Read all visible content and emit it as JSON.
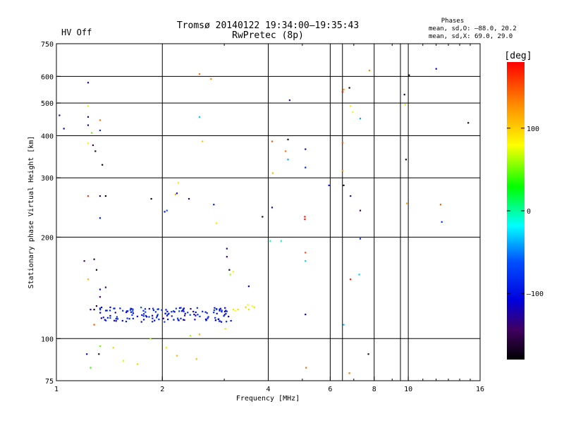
{
  "header": {
    "status": "HV Off",
    "title_line1": "Tromsø 20140122 19:34:00–19:35:43",
    "title_line2": "RwPretec (8p)",
    "phases_title": "Phases",
    "phases_o": "mean, sd,O: –88.0, 20.2",
    "phases_x": "mean, sd,X: 69.0, 29.0"
  },
  "colors": {
    "status": "#cc0000",
    "grid": "#000000"
  },
  "chart_data": {
    "type": "scatter",
    "title": "Tromsø 20140122 19:34:00–19:35:43",
    "subtitle": "RwPretec (8p)",
    "xlabel": "Frequency [MHz]",
    "ylabel": "Stationary phase Virtual Height [km]",
    "xscale": "log2",
    "yscale": "log",
    "xlim": [
      1,
      16
    ],
    "ylim": [
      75,
      750
    ],
    "xticks": [
      {
        "v": 1,
        "label": "1"
      },
      {
        "v": 2,
        "label": "2"
      },
      {
        "v": 4,
        "label": "4"
      },
      {
        "v": 6,
        "label": "6"
      },
      {
        "v": 8,
        "label": "8"
      },
      {
        "v": 10,
        "label": "10"
      },
      {
        "v": 16,
        "label": "16"
      }
    ],
    "x_minor_grid": [
      6.5,
      9.5
    ],
    "yticks": [
      {
        "v": 75,
        "label": "75"
      },
      {
        "v": 100,
        "label": "100"
      },
      {
        "v": 200,
        "label": "200"
      },
      {
        "v": 300,
        "label": "300"
      },
      {
        "v": 400,
        "label": "400"
      },
      {
        "v": 500,
        "label": "500"
      },
      {
        "v": 600,
        "label": "600"
      },
      {
        "v": 750,
        "label": "750"
      }
    ],
    "grid": true,
    "colorbar": {
      "label": "[deg]",
      "range": [
        -180,
        180
      ],
      "ticks": [
        {
          "v": 100,
          "label": "100"
        },
        {
          "v": 0,
          "label": "0"
        },
        {
          "v": -100,
          "label": "–100"
        }
      ]
    },
    "points_fields": [
      "x_MHz",
      "height_km",
      "phase_deg"
    ],
    "points": [
      [
        1.02,
        460,
        -135
      ],
      [
        1.05,
        420,
        -125
      ],
      [
        1.23,
        575,
        -112
      ],
      [
        1.23,
        455,
        -125
      ],
      [
        1.23,
        430,
        -125
      ],
      [
        1.23,
        490,
        70
      ],
      [
        1.23,
        380,
        85
      ],
      [
        1.26,
        408,
        50
      ],
      [
        1.27,
        375,
        -150
      ],
      [
        1.29,
        360,
        -160
      ],
      [
        1.33,
        415,
        -90
      ],
      [
        1.33,
        445,
        140
      ],
      [
        1.35,
        328,
        -170
      ],
      [
        1.23,
        265,
        160
      ],
      [
        1.33,
        265,
        -155
      ],
      [
        1.38,
        265,
        -175
      ],
      [
        1.33,
        228,
        -95
      ],
      [
        1.86,
        260,
        -170
      ],
      [
        2.03,
        238,
        -100
      ],
      [
        2.06,
        240,
        -60
      ],
      [
        2.2,
        270,
        -95
      ],
      [
        2.22,
        290,
        90
      ],
      [
        2.18,
        268,
        120
      ],
      [
        2.38,
        260,
        -130
      ],
      [
        2.55,
        610,
        140
      ],
      [
        2.75,
        590,
        130
      ],
      [
        2.55,
        455,
        -30
      ],
      [
        2.6,
        385,
        105
      ],
      [
        2.8,
        250,
        -90
      ],
      [
        2.85,
        220,
        90
      ],
      [
        3.05,
        185,
        -130
      ],
      [
        3.05,
        175,
        -145
      ],
      [
        3.1,
        160,
        -160
      ],
      [
        3.12,
        155,
        60
      ],
      [
        3.18,
        158,
        85
      ],
      [
        3.52,
        143,
        -110
      ],
      [
        3.85,
        230,
        -170
      ],
      [
        4.05,
        195,
        -5
      ],
      [
        4.1,
        245,
        -130
      ],
      [
        4.35,
        195,
        -5
      ],
      [
        4.1,
        385,
        150
      ],
      [
        4.12,
        310,
        110
      ],
      [
        4.48,
        360,
        140
      ],
      [
        4.55,
        340,
        -40
      ],
      [
        4.55,
        390,
        -170
      ],
      [
        4.6,
        510,
        -140
      ],
      [
        5.1,
        365,
        -130
      ],
      [
        5.1,
        322,
        -90
      ],
      [
        5.08,
        230,
        175
      ],
      [
        5.08,
        226,
        175
      ],
      [
        5.1,
        180,
        155
      ],
      [
        5.1,
        170,
        -30
      ],
      [
        5.1,
        118,
        -110
      ],
      [
        5.12,
        82,
        140
      ],
      [
        5.95,
        285,
        -100
      ],
      [
        6.5,
        540,
        170
      ],
      [
        6.55,
        548,
        130
      ],
      [
        6.8,
        555,
        -175
      ],
      [
        6.85,
        490,
        90
      ],
      [
        6.95,
        470,
        75
      ],
      [
        7.3,
        450,
        -40
      ],
      [
        6.5,
        382,
        150
      ],
      [
        6.5,
        315,
        130
      ],
      [
        6.55,
        285,
        -175
      ],
      [
        6.85,
        265,
        -135
      ],
      [
        7.3,
        240,
        -150
      ],
      [
        7.3,
        198,
        -85
      ],
      [
        7.25,
        155,
        -30
      ],
      [
        6.85,
        150,
        175
      ],
      [
        6.55,
        110,
        -35
      ],
      [
        7.75,
        625,
        130
      ],
      [
        7.7,
        90,
        -160
      ],
      [
        6.8,
        79,
        140
      ],
      [
        9.75,
        530,
        -160
      ],
      [
        9.8,
        495,
        70
      ],
      [
        9.85,
        340,
        -170
      ],
      [
        9.9,
        252,
        120
      ],
      [
        10.05,
        605,
        -170
      ],
      [
        12.0,
        632,
        -110
      ],
      [
        12.35,
        250,
        145
      ],
      [
        12.45,
        222,
        -80
      ],
      [
        14.8,
        437,
        -170
      ],
      [
        1.22,
        90,
        -120
      ],
      [
        1.32,
        90,
        -160
      ],
      [
        1.33,
        95,
        50
      ],
      [
        1.45,
        94,
        100
      ],
      [
        1.55,
        86,
        70
      ],
      [
        1.7,
        84,
        100
      ],
      [
        1.85,
        100,
        60
      ],
      [
        2.05,
        94,
        90
      ],
      [
        2.2,
        89,
        110
      ],
      [
        2.4,
        102,
        60
      ],
      [
        2.5,
        87,
        110
      ],
      [
        2.55,
        103,
        110
      ],
      [
        3.02,
        107,
        90
      ],
      [
        1.25,
        82,
        40
      ],
      [
        1.28,
        110,
        150
      ],
      [
        1.2,
        170,
        -140
      ],
      [
        1.28,
        172,
        -150
      ],
      [
        1.3,
        160,
        -170
      ],
      [
        1.23,
        150,
        110
      ],
      [
        1.33,
        140,
        -100
      ],
      [
        1.38,
        142,
        -140
      ],
      [
        1.33,
        133,
        -140
      ],
      [
        1.3,
        125,
        -160
      ],
      [
        1.25,
        122,
        -130
      ],
      [
        1.28,
        122,
        -175
      ],
      [
        3.45,
        124,
        100
      ],
      [
        3.5,
        126,
        75
      ],
      [
        3.52,
        122,
        95
      ],
      [
        3.6,
        125,
        80
      ],
      [
        3.65,
        124,
        65
      ],
      [
        3.18,
        122,
        90
      ],
      [
        3.22,
        121,
        80
      ],
      [
        3.28,
        122,
        95
      ]
    ],
    "cluster": {
      "x_range_MHz": [
        1.33,
        3.15
      ],
      "height_km_approx": 118,
      "phase_deg_mean": -95,
      "n_points": 150
    }
  }
}
